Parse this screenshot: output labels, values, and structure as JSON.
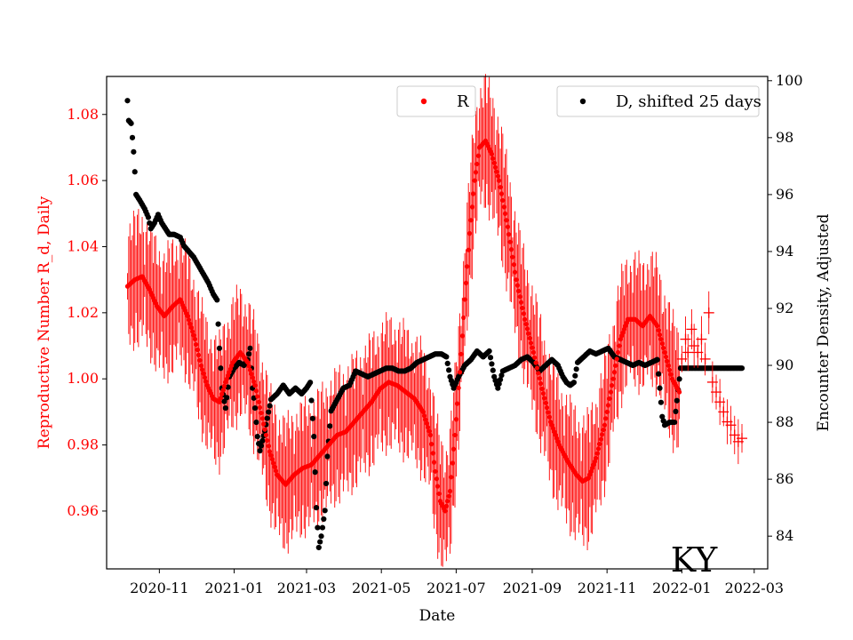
{
  "chart_data": {
    "type": "scatter",
    "title": "",
    "state_label": "KY",
    "xlabel": "Date",
    "ylabel_left": "Reproductive Number R_d, Daily",
    "ylabel_right": "Encounter Density, Adjusted",
    "x_range": [
      "2020-09-19",
      "2022-03-12"
    ],
    "ylim_left": [
      0.9425,
      1.0915
    ],
    "ylim_right": [
      82.85,
      100.15
    ],
    "x_ticks": [
      "2020-11",
      "2021-01",
      "2021-03",
      "2021-05",
      "2021-07",
      "2021-09",
      "2021-11",
      "2022-01",
      "2022-03"
    ],
    "y_ticks_left": [
      "0.96",
      "0.98",
      "1.00",
      "1.02",
      "1.04",
      "1.06",
      "1.08"
    ],
    "y_ticks_right": [
      "84",
      "86",
      "88",
      "90",
      "92",
      "94",
      "96",
      "98",
      "100"
    ],
    "colors": {
      "r_series": "#ff0000",
      "d_series": "#000000",
      "axis": "#000000"
    },
    "series": [
      {
        "name": "R",
        "axis": "left",
        "marker": "dot",
        "points": [
          [
            "2020-10-06",
            1.028
          ],
          [
            "2020-10-12",
            1.03
          ],
          [
            "2020-10-18",
            1.031
          ],
          [
            "2020-10-24",
            1.027
          ],
          [
            "2020-10-30",
            1.022
          ],
          [
            "2020-11-05",
            1.019
          ],
          [
            "2020-11-12",
            1.022
          ],
          [
            "2020-11-18",
            1.024
          ],
          [
            "2020-11-24",
            1.019
          ],
          [
            "2020-11-30",
            1.012
          ],
          [
            "2020-12-05",
            1.004
          ],
          [
            "2020-12-10",
            0.998
          ],
          [
            "2020-12-15",
            0.994
          ],
          [
            "2020-12-20",
            0.993
          ],
          [
            "2020-12-25",
            0.999
          ],
          [
            "2020-12-31",
            1.005
          ],
          [
            "2021-01-06",
            1.008
          ],
          [
            "2021-01-12",
            1.005
          ],
          [
            "2021-01-18",
            0.998
          ],
          [
            "2021-01-24",
            0.988
          ],
          [
            "2021-01-30",
            0.978
          ],
          [
            "2021-02-05",
            0.971
          ],
          [
            "2021-02-12",
            0.968
          ],
          [
            "2021-02-19",
            0.971
          ],
          [
            "2021-02-26",
            0.973
          ],
          [
            "2021-03-05",
            0.974
          ],
          [
            "2021-03-12",
            0.977
          ],
          [
            "2021-03-19",
            0.98
          ],
          [
            "2021-03-26",
            0.983
          ],
          [
            "2021-04-02",
            0.984
          ],
          [
            "2021-04-09",
            0.987
          ],
          [
            "2021-04-16",
            0.99
          ],
          [
            "2021-04-23",
            0.993
          ],
          [
            "2021-04-30",
            0.997
          ],
          [
            "2021-05-07",
            0.999
          ],
          [
            "2021-05-14",
            0.998
          ],
          [
            "2021-05-21",
            0.996
          ],
          [
            "2021-05-28",
            0.994
          ],
          [
            "2021-06-04",
            0.99
          ],
          [
            "2021-06-10",
            0.983
          ],
          [
            "2021-06-14",
            0.972
          ],
          [
            "2021-06-18",
            0.963
          ],
          [
            "2021-06-22",
            0.96
          ],
          [
            "2021-06-26",
            0.966
          ],
          [
            "2021-06-30",
            0.983
          ],
          [
            "2021-07-04",
            1.002
          ],
          [
            "2021-07-08",
            1.024
          ],
          [
            "2021-07-12",
            1.044
          ],
          [
            "2021-07-16",
            1.06
          ],
          [
            "2021-07-20",
            1.07
          ],
          [
            "2021-07-25",
            1.072
          ],
          [
            "2021-07-30",
            1.068
          ],
          [
            "2021-08-05",
            1.06
          ],
          [
            "2021-08-12",
            1.046
          ],
          [
            "2021-08-19",
            1.03
          ],
          [
            "2021-08-26",
            1.018
          ],
          [
            "2021-09-02",
            1.008
          ],
          [
            "2021-09-09",
            0.997
          ],
          [
            "2021-09-16",
            0.987
          ],
          [
            "2021-09-23",
            0.98
          ],
          [
            "2021-09-30",
            0.975
          ],
          [
            "2021-10-07",
            0.971
          ],
          [
            "2021-10-12",
            0.969
          ],
          [
            "2021-10-17",
            0.97
          ],
          [
            "2021-10-23",
            0.976
          ],
          [
            "2021-10-30",
            0.986
          ],
          [
            "2021-11-06",
            1.0
          ],
          [
            "2021-11-12",
            1.012
          ],
          [
            "2021-11-18",
            1.018
          ],
          [
            "2021-11-24",
            1.018
          ],
          [
            "2021-11-30",
            1.016
          ],
          [
            "2021-12-06",
            1.019
          ],
          [
            "2021-12-12",
            1.016
          ],
          [
            "2021-12-18",
            1.008
          ],
          [
            "2021-12-24",
            1.0
          ],
          [
            "2021-12-30",
            0.996
          ]
        ]
      },
      {
        "name": "R",
        "axis": "left",
        "marker": "plus",
        "points": [
          [
            "2022-01-01",
            1.006
          ],
          [
            "2022-01-04",
            1.012
          ],
          [
            "2022-01-06",
            1.008
          ],
          [
            "2022-01-09",
            1.015
          ],
          [
            "2022-01-11",
            1.01
          ],
          [
            "2022-01-14",
            1.008
          ],
          [
            "2022-01-17",
            1.012
          ],
          [
            "2022-01-20",
            1.006
          ],
          [
            "2022-01-23",
            1.02
          ],
          [
            "2022-01-26",
            0.999
          ],
          [
            "2022-01-29",
            0.996
          ],
          [
            "2022-02-01",
            0.993
          ],
          [
            "2022-02-04",
            0.99
          ],
          [
            "2022-02-07",
            0.987
          ],
          [
            "2022-02-10",
            0.986
          ],
          [
            "2022-02-13",
            0.983
          ],
          [
            "2022-02-16",
            0.981
          ],
          [
            "2022-02-19",
            0.982
          ]
        ]
      },
      {
        "name": "D, shifted 25 days",
        "axis": "right",
        "marker": "dot",
        "points": [
          [
            "2020-10-06",
            99.3
          ],
          [
            "2020-10-07",
            98.6
          ],
          [
            "2020-10-09",
            98.5
          ],
          [
            "2020-10-11",
            97.5
          ],
          [
            "2020-10-12",
            96.8
          ],
          [
            "2020-10-13",
            96.0
          ],
          [
            "2020-10-16",
            95.8
          ],
          [
            "2020-10-20",
            95.5
          ],
          [
            "2020-10-23",
            95.2
          ],
          [
            "2020-10-25",
            94.8
          ],
          [
            "2020-10-28",
            95.0
          ],
          [
            "2020-10-31",
            95.3
          ],
          [
            "2020-11-03",
            95.0
          ],
          [
            "2020-11-06",
            94.8
          ],
          [
            "2020-11-09",
            94.6
          ],
          [
            "2020-11-13",
            94.6
          ],
          [
            "2020-11-18",
            94.5
          ],
          [
            "2020-11-21",
            94.2
          ],
          [
            "2020-11-25",
            94.0
          ],
          [
            "2020-11-29",
            93.8
          ],
          [
            "2020-12-03",
            93.5
          ],
          [
            "2020-12-07",
            93.2
          ],
          [
            "2020-12-11",
            92.9
          ],
          [
            "2020-12-15",
            92.5
          ],
          [
            "2020-12-18",
            92.3
          ],
          [
            "2020-12-20",
            90.6
          ],
          [
            "2020-12-22",
            89.2
          ],
          [
            "2020-12-25",
            88.5
          ],
          [
            "2020-12-28",
            89.6
          ],
          [
            "2021-01-01",
            89.9
          ],
          [
            "2021-01-05",
            90.1
          ],
          [
            "2021-01-09",
            90.0
          ],
          [
            "2021-01-12",
            90.2
          ],
          [
            "2021-01-14",
            90.6
          ],
          [
            "2021-01-16",
            89.2
          ],
          [
            "2021-01-18",
            88.5
          ],
          [
            "2021-01-20",
            87.5
          ],
          [
            "2021-01-22",
            87.0
          ],
          [
            "2021-01-26",
            87.7
          ],
          [
            "2021-01-31",
            88.8
          ],
          [
            "2021-02-05",
            89.0
          ],
          [
            "2021-02-10",
            89.3
          ],
          [
            "2021-02-15",
            89.0
          ],
          [
            "2021-02-20",
            89.2
          ],
          [
            "2021-02-25",
            89.0
          ],
          [
            "2021-03-01",
            89.2
          ],
          [
            "2021-03-04",
            89.4
          ],
          [
            "2021-03-07",
            87.5
          ],
          [
            "2021-03-09",
            85.0
          ],
          [
            "2021-03-11",
            83.6
          ],
          [
            "2021-03-13",
            84.0
          ],
          [
            "2021-03-16",
            84.9
          ],
          [
            "2021-03-18",
            86.8
          ],
          [
            "2021-03-21",
            88.4
          ],
          [
            "2021-03-26",
            88.8
          ],
          [
            "2021-03-31",
            89.2
          ],
          [
            "2021-04-05",
            89.3
          ],
          [
            "2021-04-10",
            89.8
          ],
          [
            "2021-04-15",
            89.7
          ],
          [
            "2021-04-20",
            89.6
          ],
          [
            "2021-04-25",
            89.7
          ],
          [
            "2021-04-30",
            89.8
          ],
          [
            "2021-05-05",
            89.9
          ],
          [
            "2021-05-10",
            89.9
          ],
          [
            "2021-05-15",
            89.8
          ],
          [
            "2021-05-20",
            89.8
          ],
          [
            "2021-05-25",
            89.9
          ],
          [
            "2021-05-30",
            90.1
          ],
          [
            "2021-06-04",
            90.2
          ],
          [
            "2021-06-09",
            90.3
          ],
          [
            "2021-06-14",
            90.4
          ],
          [
            "2021-06-19",
            90.4
          ],
          [
            "2021-06-23",
            90.3
          ],
          [
            "2021-06-26",
            89.6
          ],
          [
            "2021-06-29",
            89.2
          ],
          [
            "2021-07-03",
            89.6
          ],
          [
            "2021-07-08",
            90.0
          ],
          [
            "2021-07-13",
            90.2
          ],
          [
            "2021-07-18",
            90.5
          ],
          [
            "2021-07-23",
            90.3
          ],
          [
            "2021-07-28",
            90.5
          ],
          [
            "2021-08-01",
            89.6
          ],
          [
            "2021-08-04",
            89.2
          ],
          [
            "2021-08-08",
            89.8
          ],
          [
            "2021-08-13",
            89.9
          ],
          [
            "2021-08-18",
            90.0
          ],
          [
            "2021-08-23",
            90.2
          ],
          [
            "2021-08-28",
            90.3
          ],
          [
            "2021-09-02",
            90.1
          ],
          [
            "2021-09-07",
            89.8
          ],
          [
            "2021-09-12",
            90.0
          ],
          [
            "2021-09-17",
            90.2
          ],
          [
            "2021-09-22",
            90.0
          ],
          [
            "2021-09-26",
            89.6
          ],
          [
            "2021-09-29",
            89.4
          ],
          [
            "2021-10-02",
            89.3
          ],
          [
            "2021-10-05",
            89.4
          ],
          [
            "2021-10-08",
            90.1
          ],
          [
            "2021-10-13",
            90.3
          ],
          [
            "2021-10-18",
            90.5
          ],
          [
            "2021-10-23",
            90.4
          ],
          [
            "2021-10-28",
            90.5
          ],
          [
            "2021-11-02",
            90.6
          ],
          [
            "2021-11-07",
            90.3
          ],
          [
            "2021-11-12",
            90.2
          ],
          [
            "2021-11-17",
            90.1
          ],
          [
            "2021-11-22",
            90.0
          ],
          [
            "2021-11-27",
            90.1
          ],
          [
            "2021-12-02",
            90.0
          ],
          [
            "2021-12-07",
            90.1
          ],
          [
            "2021-12-12",
            90.2
          ],
          [
            "2021-12-16",
            88.2
          ],
          [
            "2021-12-18",
            87.9
          ],
          [
            "2021-12-22",
            88.0
          ],
          [
            "2021-12-26",
            88.0
          ],
          [
            "2021-12-31",
            89.9
          ],
          [
            "2022-01-05",
            89.9
          ],
          [
            "2022-01-10",
            89.9
          ],
          [
            "2022-01-15",
            89.9
          ],
          [
            "2022-01-20",
            89.9
          ],
          [
            "2022-01-25",
            89.9
          ],
          [
            "2022-01-30",
            89.9
          ],
          [
            "2022-02-04",
            89.9
          ],
          [
            "2022-02-09",
            89.9
          ],
          [
            "2022-02-14",
            89.9
          ],
          [
            "2022-02-19",
            89.9
          ]
        ]
      }
    ],
    "legends": [
      {
        "label": "R",
        "marker": "dot",
        "position": "top-center"
      },
      {
        "label": "D, shifted 25 days",
        "marker": "dot",
        "position": "top-right"
      }
    ]
  }
}
